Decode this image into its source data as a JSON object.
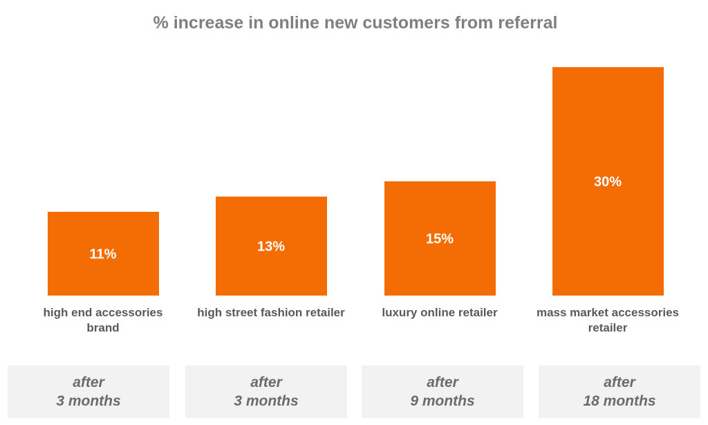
{
  "colors": {
    "bar": "#f36c04",
    "title": "#7f7f7f",
    "category_label": "#595959",
    "duration_box": "#f2f2f2",
    "duration_text": "#6b6b6b"
  },
  "chart_data": {
    "type": "bar",
    "title": "% increase in online new customers from referral",
    "xlabel": "",
    "ylabel": "",
    "ylim": [
      0,
      30
    ],
    "grid": false,
    "categories": [
      [
        "high end accessories",
        "brand"
      ],
      [
        "high street fashion retailer"
      ],
      [
        "luxury online retailer"
      ],
      [
        "mass market accessories",
        "retailer"
      ]
    ],
    "values": [
      11,
      13,
      15,
      30
    ],
    "data_labels": [
      "11%",
      "13%",
      "15%",
      "30%"
    ]
  },
  "durations": [
    {
      "line1": "after",
      "line2": "3 months"
    },
    {
      "line1": "after",
      "line2": "3 months"
    },
    {
      "line1": "after",
      "line2": "9 months"
    },
    {
      "line1": "after",
      "line2": "18 months"
    }
  ]
}
